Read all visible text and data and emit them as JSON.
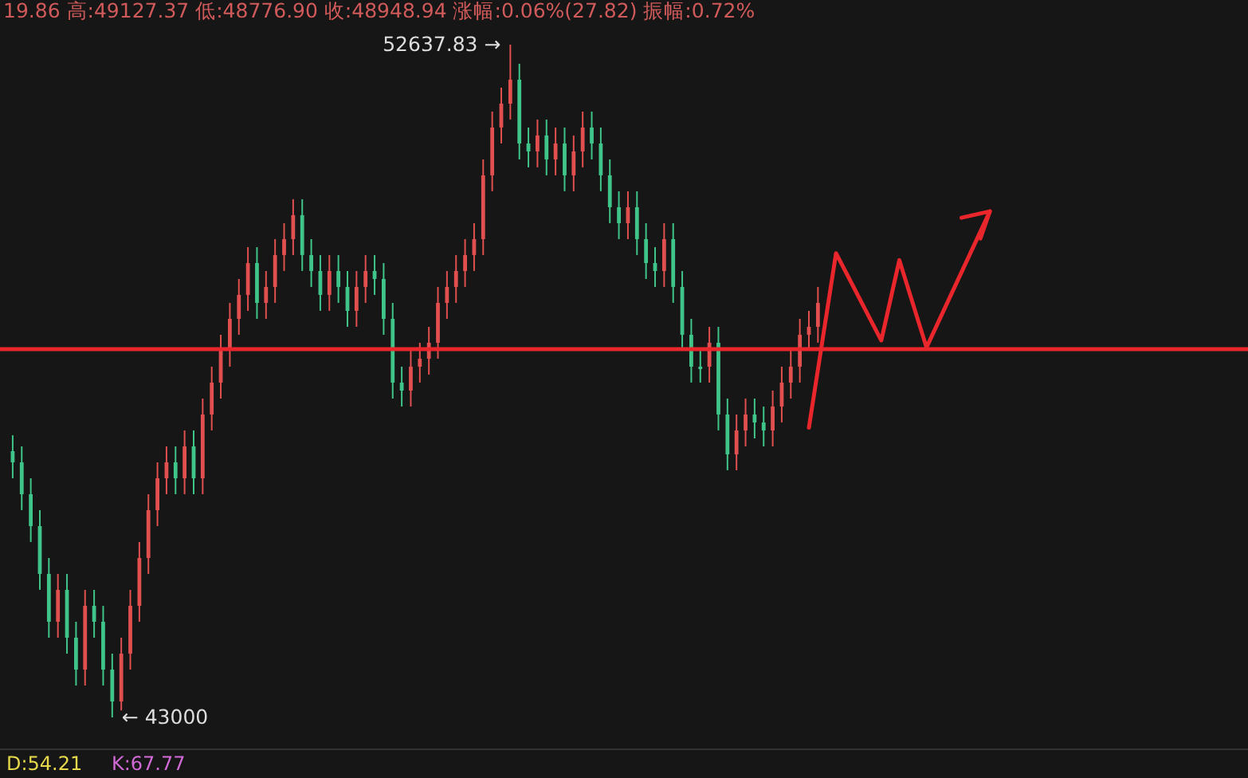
{
  "chart_data": {
    "type": "candlestick",
    "categories": [
      null,
      null,
      null,
      null,
      null,
      null,
      null,
      null,
      null,
      null,
      null,
      null,
      null,
      null,
      null,
      null,
      null,
      null,
      null,
      null,
      null,
      null,
      null,
      null,
      null,
      null,
      null,
      null,
      null,
      null,
      null,
      null,
      null,
      null,
      null,
      null,
      null,
      null,
      null,
      null,
      null,
      null,
      null,
      null,
      null,
      null,
      null,
      null,
      null,
      null,
      null,
      null,
      null,
      null,
      null,
      null,
      null,
      null,
      null,
      null,
      null,
      null,
      null,
      null,
      null,
      null,
      null,
      null,
      null,
      null,
      null,
      null,
      null,
      null,
      null,
      null,
      null,
      null,
      null,
      null,
      null,
      null,
      null,
      null,
      null,
      null,
      null,
      null,
      null,
      null,
      null,
      null,
      null,
      null,
      null,
      null,
      null,
      null,
      null,
      null,
      null,
      null,
      null,
      null,
      null,
      null,
      null,
      null,
      null,
      null,
      null,
      null,
      null,
      null,
      null,
      null,
      null,
      null,
      null,
      null,
      null,
      null,
      null,
      null,
      null,
      null,
      null,
      null,
      null,
      null,
      null,
      null,
      null,
      null,
      null,
      null
    ],
    "ohlc": [
      [
        46814,
        47042,
        46426,
        46654
      ],
      [
        46654,
        46882,
        45970,
        46198
      ],
      [
        46198,
        46426,
        45513,
        45741
      ],
      [
        45741,
        45969,
        44828,
        45056
      ],
      [
        45056,
        45284,
        44142,
        44370
      ],
      [
        44370,
        45055,
        44142,
        44827
      ],
      [
        44827,
        45055,
        43914,
        44142
      ],
      [
        44142,
        44370,
        43457,
        43685
      ],
      [
        43685,
        44827,
        43457,
        44599
      ],
      [
        44599,
        44827,
        44142,
        44370
      ],
      [
        44370,
        44598,
        43457,
        43685
      ],
      [
        43685,
        43913,
        43000,
        43228
      ],
      [
        43228,
        44142,
        43100,
        43914
      ],
      [
        43914,
        44827,
        43686,
        44599
      ],
      [
        44599,
        45512,
        44371,
        45284
      ],
      [
        45284,
        46197,
        45056,
        45969
      ],
      [
        45969,
        46654,
        45741,
        46426
      ],
      [
        46426,
        46882,
        46198,
        46654
      ],
      [
        46654,
        46882,
        46198,
        46426
      ],
      [
        46426,
        47111,
        46198,
        46883
      ],
      [
        46883,
        47111,
        46198,
        46426
      ],
      [
        46426,
        47568,
        46198,
        47340
      ],
      [
        47340,
        48024,
        47112,
        47796
      ],
      [
        47796,
        48481,
        47568,
        48253
      ],
      [
        48253,
        48938,
        48025,
        48710
      ],
      [
        48710,
        49281,
        48482,
        49053
      ],
      [
        49053,
        49737,
        48825,
        49509
      ],
      [
        49509,
        49737,
        48710,
        48938
      ],
      [
        48938,
        49395,
        48710,
        49167
      ],
      [
        49167,
        49852,
        48939,
        49624
      ],
      [
        49624,
        50080,
        49396,
        49852
      ],
      [
        49852,
        50423,
        49624,
        50195
      ],
      [
        50195,
        50423,
        49396,
        49624
      ],
      [
        49624,
        49852,
        49167,
        49395
      ],
      [
        49395,
        49623,
        48825,
        49053
      ],
      [
        49053,
        49623,
        48825,
        49395
      ],
      [
        49395,
        49623,
        48939,
        49167
      ],
      [
        49167,
        49395,
        48596,
        48824
      ],
      [
        48824,
        49395,
        48596,
        49167
      ],
      [
        49167,
        49623,
        48939,
        49395
      ],
      [
        49395,
        49623,
        49053,
        49281
      ],
      [
        49281,
        49509,
        48482,
        48710
      ],
      [
        48710,
        48938,
        47568,
        47796
      ],
      [
        47796,
        48024,
        47454,
        47682
      ],
      [
        47682,
        48253,
        47454,
        48025
      ],
      [
        48025,
        48367,
        47797,
        48139
      ],
      [
        48139,
        48595,
        47911,
        48367
      ],
      [
        48367,
        49166,
        48139,
        48938
      ],
      [
        48938,
        49395,
        48710,
        49167
      ],
      [
        49167,
        49623,
        48939,
        49395
      ],
      [
        49395,
        49852,
        49167,
        49624
      ],
      [
        49624,
        50080,
        49396,
        49852
      ],
      [
        49852,
        50994,
        49624,
        50766
      ],
      [
        50766,
        51679,
        50538,
        51451
      ],
      [
        51451,
        52021,
        51223,
        51793
      ],
      [
        51793,
        52637.83,
        51565,
        52136
      ],
      [
        52136,
        52364,
        50994,
        51222
      ],
      [
        51222,
        51450,
        50880,
        51108
      ],
      [
        51108,
        51565,
        50880,
        51337
      ],
      [
        51337,
        51565,
        50766,
        50994
      ],
      [
        50994,
        51450,
        50766,
        51222
      ],
      [
        51222,
        51450,
        50538,
        50766
      ],
      [
        50766,
        51336,
        50538,
        51108
      ],
      [
        51108,
        51679,
        50880,
        51451
      ],
      [
        51451,
        51679,
        50994,
        51222
      ],
      [
        51222,
        51450,
        50538,
        50766
      ],
      [
        50766,
        50994,
        50081,
        50309
      ],
      [
        50309,
        50537,
        49852,
        50080
      ],
      [
        50080,
        50537,
        49852,
        50309
      ],
      [
        50309,
        50537,
        49624,
        49852
      ],
      [
        49852,
        50080,
        49281,
        49509
      ],
      [
        49509,
        49737,
        49167,
        49395
      ],
      [
        49395,
        50080,
        49167,
        49852
      ],
      [
        49852,
        50080,
        48939,
        49167
      ],
      [
        49167,
        49395,
        48254,
        48482
      ],
      [
        48482,
        48710,
        47797,
        48025
      ],
      [
        48025,
        48253,
        47797,
        47990
      ],
      [
        48025,
        48595,
        47797,
        48367
      ],
      [
        48367,
        48595,
        47112,
        47340
      ],
      [
        47340,
        47568,
        46541,
        46769
      ],
      [
        46769,
        47339,
        46541,
        47111
      ],
      [
        47111,
        47568,
        46883,
        47340
      ],
      [
        47340,
        47568,
        46997,
        47225
      ],
      [
        47225,
        47453,
        46883,
        47111
      ],
      [
        47111,
        47682,
        46883,
        47454
      ],
      [
        47454,
        48024,
        47226,
        47796
      ],
      [
        47796,
        48253,
        47568,
        48025
      ],
      [
        48025,
        48710,
        47797,
        48482
      ],
      [
        48482,
        48824,
        48254,
        48596
      ],
      [
        48596,
        49166,
        48368,
        48938
      ],
      null,
      null,
      null,
      null,
      null,
      null,
      null,
      null,
      null,
      null,
      null,
      null,
      null,
      null,
      null,
      null,
      null,
      null,
      null,
      null,
      null,
      null,
      null,
      null,
      null,
      null,
      null,
      null,
      null,
      null,
      null,
      null,
      null,
      null,
      null,
      null,
      null,
      null,
      null,
      null,
      null,
      null,
      null,
      null,
      null,
      null
    ],
    "colors": [
      "#3fc58a",
      "#3fc58a",
      "#3fc58a",
      "#3fc58a",
      "#3fc58a",
      "#e24f4f",
      "#3fc58a",
      "#3fc58a",
      "#e24f4f",
      "#3fc58a",
      "#3fc58a",
      "#3fc58a",
      "#e24f4f",
      "#e24f4f",
      "#e24f4f",
      "#e24f4f",
      "#e24f4f",
      "#e24f4f",
      "#3fc58a",
      "#e24f4f",
      "#3fc58a",
      "#e24f4f",
      "#e24f4f",
      "#e24f4f",
      "#e24f4f",
      "#e24f4f",
      "#e24f4f",
      "#3fc58a",
      "#e24f4f",
      "#e24f4f",
      "#e24f4f",
      "#e24f4f",
      "#3fc58a",
      "#3fc58a",
      "#3fc58a",
      "#e24f4f",
      "#3fc58a",
      "#3fc58a",
      "#e24f4f",
      "#e24f4f",
      "#3fc58a",
      "#3fc58a",
      "#3fc58a",
      "#3fc58a",
      "#e24f4f",
      "#e24f4f",
      "#e24f4f",
      "#e24f4f",
      "#e24f4f",
      "#e24f4f",
      "#e24f4f",
      "#e24f4f",
      "#e24f4f",
      "#e24f4f",
      "#e24f4f",
      "#e24f4f",
      "#3fc58a",
      "#3fc58a",
      "#e24f4f",
      "#3fc58a",
      "#e24f4f",
      "#3fc58a",
      "#e24f4f",
      "#e24f4f",
      "#3fc58a",
      "#3fc58a",
      "#3fc58a",
      "#3fc58a",
      "#e24f4f",
      "#3fc58a",
      "#3fc58a",
      "#3fc58a",
      "#e24f4f",
      "#3fc58a",
      "#3fc58a",
      "#3fc58a",
      "#3fc58a",
      "#e24f4f",
      "#3fc58a",
      "#3fc58a",
      "#e24f4f",
      "#e24f4f",
      "#3fc58a",
      "#3fc58a",
      "#e24f4f",
      "#e24f4f",
      "#e24f4f",
      "#e24f4f",
      "#e24f4f",
      "#e24f4f",
      null,
      null,
      null,
      null,
      null,
      null,
      null,
      null,
      null,
      null,
      null,
      null,
      null,
      null,
      null,
      null,
      null,
      null,
      null,
      null,
      null,
      null,
      null,
      null,
      null,
      null,
      null,
      null,
      null,
      null,
      null,
      null,
      null,
      null,
      null,
      null,
      null,
      null,
      null,
      null,
      null,
      null,
      null,
      null,
      null,
      null
    ],
    "series": [
      {
        "type": "line",
        "color": "#e8262b",
        "values": [
          null,
          null,
          null,
          null,
          null,
          null,
          null,
          null,
          null,
          null,
          null,
          null,
          null,
          null,
          null,
          null,
          null,
          null,
          null,
          null,
          null,
          null,
          null,
          null,
          null,
          null,
          null,
          null,
          null,
          null,
          null,
          null,
          null,
          null,
          null,
          null,
          null,
          null,
          null,
          null,
          null,
          null,
          null,
          null,
          null,
          null,
          null,
          null,
          null,
          null,
          null,
          null,
          null,
          null,
          null,
          null,
          null,
          null,
          null,
          null,
          null,
          null,
          null,
          null,
          null,
          null,
          null,
          null,
          null,
          null,
          null,
          null,
          null,
          null,
          null,
          null,
          null,
          null,
          null,
          null,
          null,
          null,
          null,
          null,
          null,
          null,
          null,
          null,
          47150,
          null,
          null,
          49650,
          null,
          null,
          null,
          null,
          48400,
          null,
          49550,
          null,
          null,
          48300,
          null,
          null,
          null,
          null,
          null,
          null,
          50250,
          null,
          null,
          null,
          null,
          null,
          null,
          null,
          null,
          null,
          null,
          null,
          null,
          null,
          null,
          null,
          null,
          null,
          null,
          null,
          null,
          null,
          null,
          null,
          null,
          null,
          null,
          null
        ]
      }
    ],
    "ref_lines": [
      {
        "axis": "y",
        "value": 48276,
        "color": "#e8262b",
        "line_style": "solid"
      }
    ],
    "annotations": [
      "19.86 高:49127.37 低:48776.90 收:48948.94 涨幅:0.06%(27.82) 振幅:0.72%",
      "52637.83 →",
      "← 43000",
      "D:54.21",
      "K:67.77"
    ]
  }
}
